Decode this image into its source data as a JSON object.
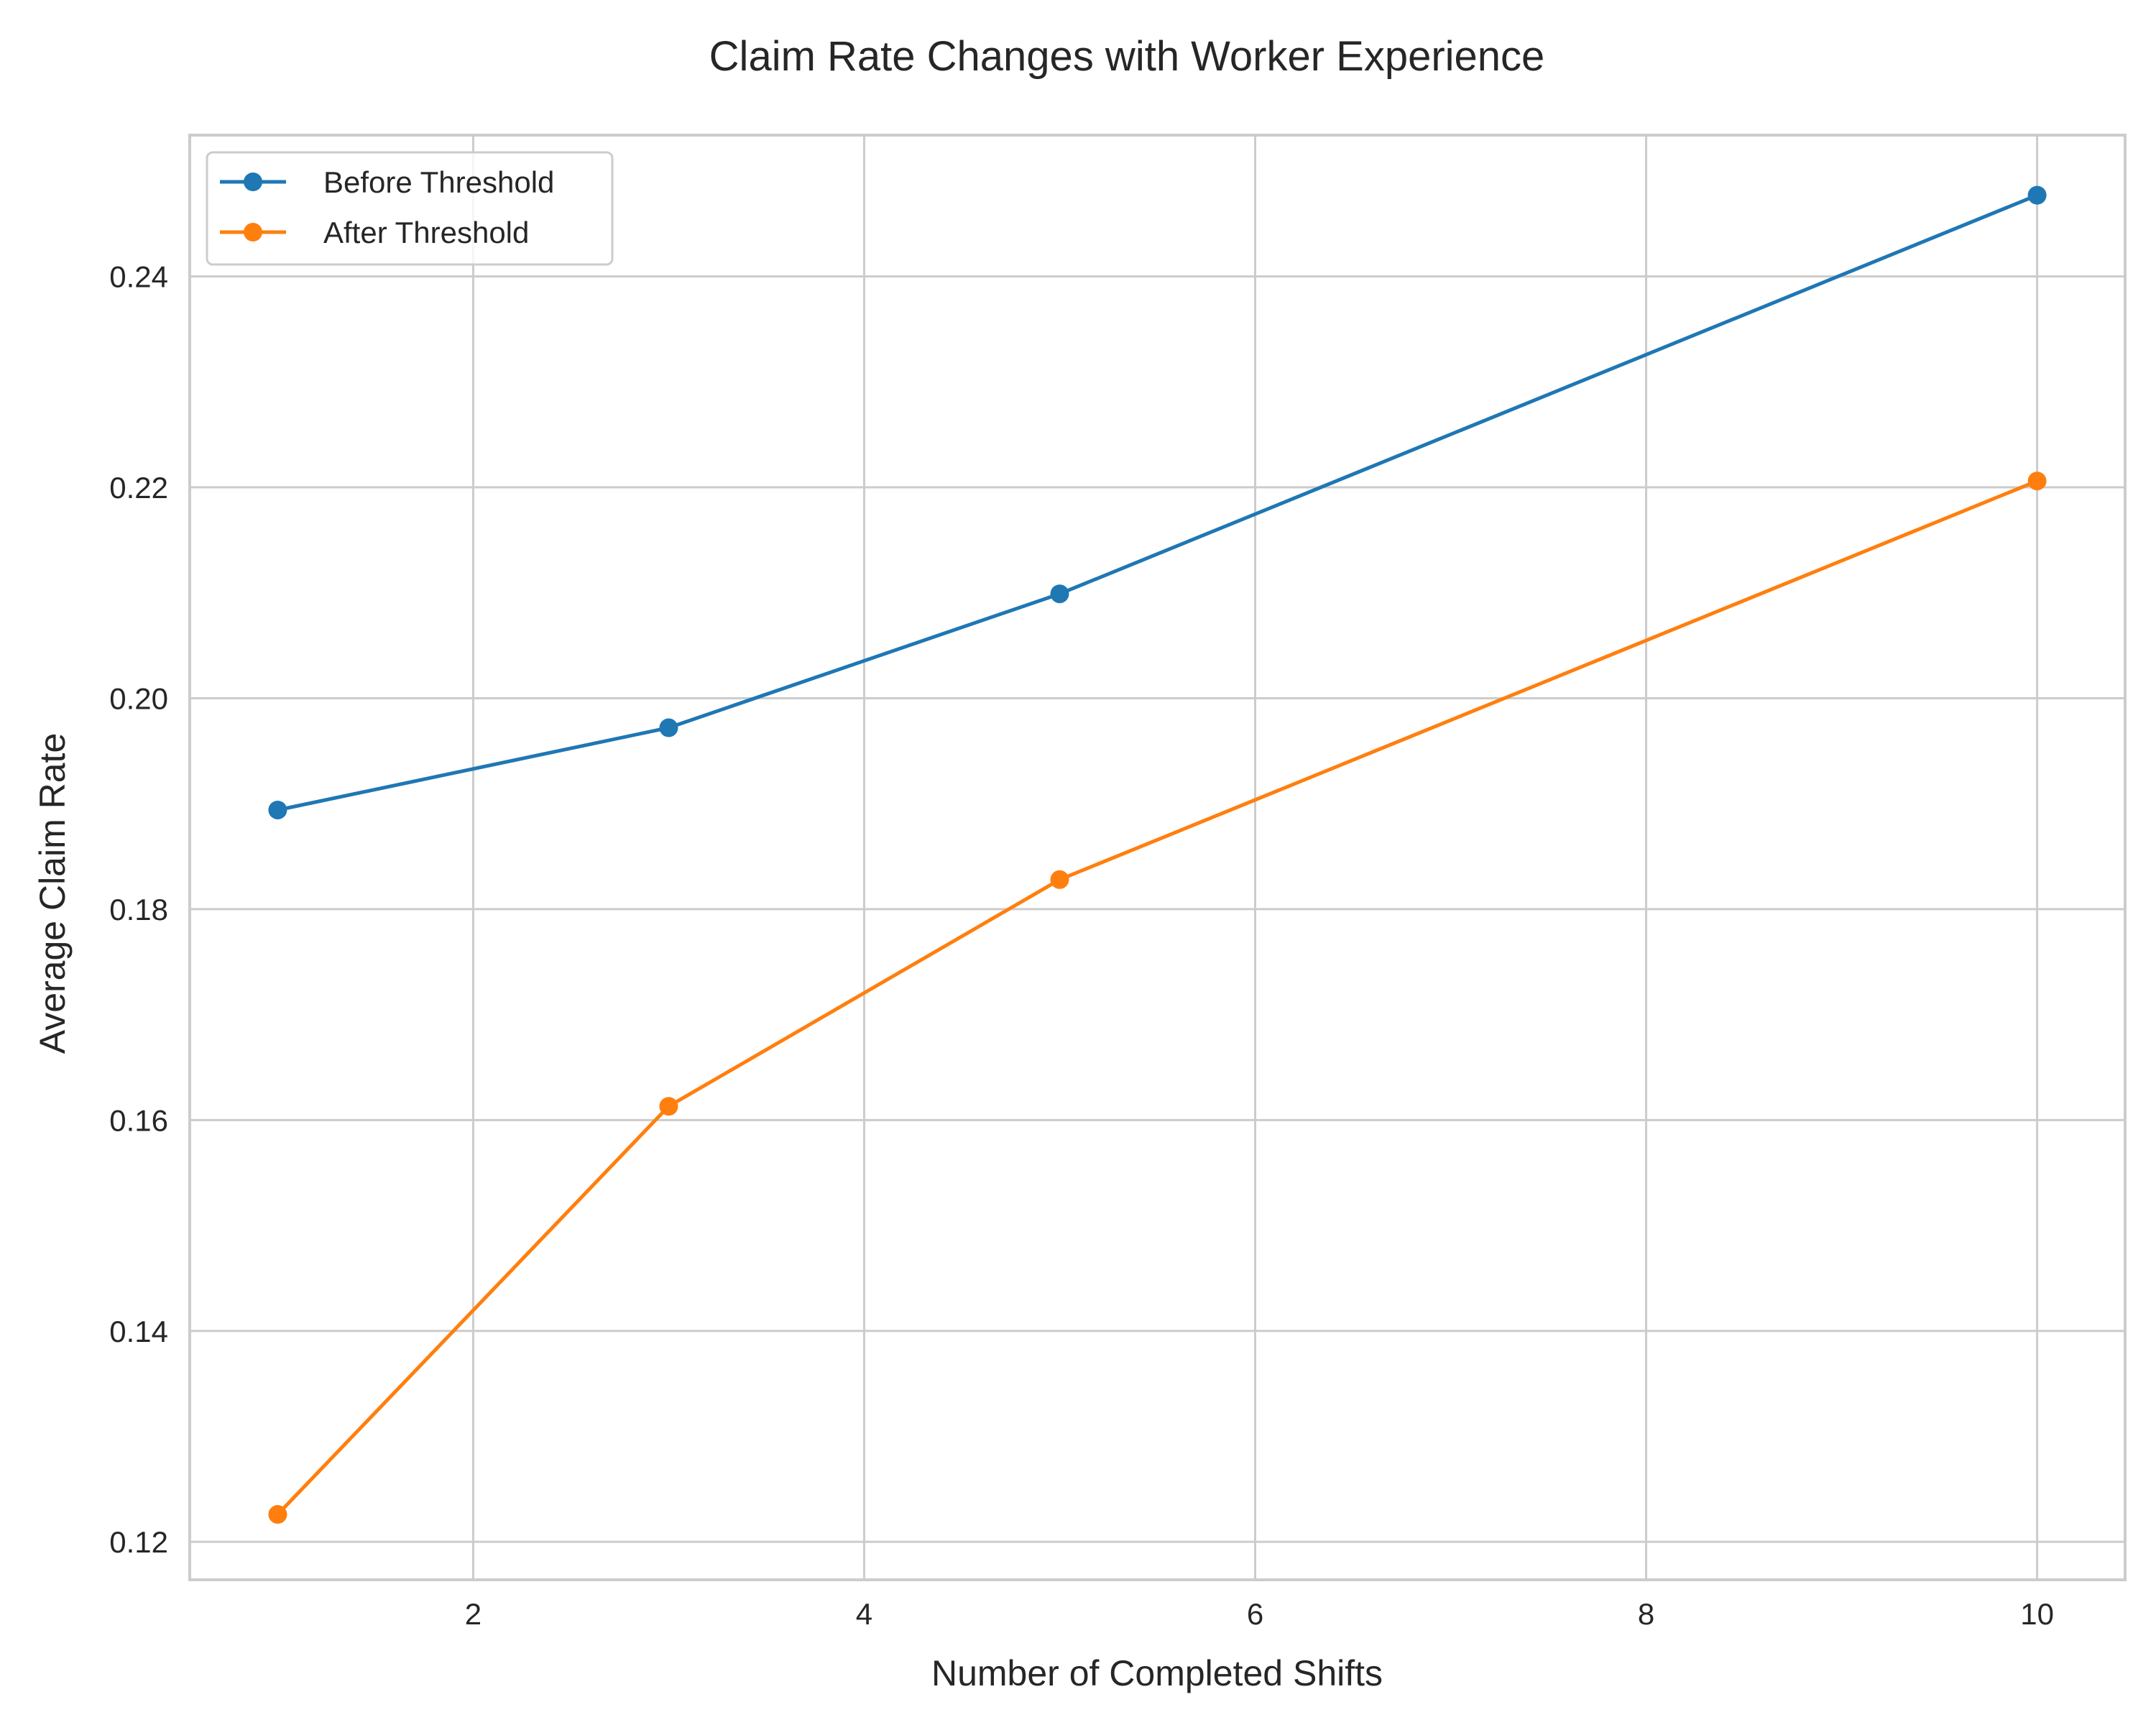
{
  "chart_data": {
    "type": "line",
    "title": "Claim Rate Changes with Worker Experience",
    "xlabel": "Number of Completed Shifts",
    "ylabel": "Average Claim Rate",
    "xlim": [
      0.55,
      10.45
    ],
    "ylim": [
      0.1164,
      0.2534
    ],
    "x_ticks": [
      2,
      4,
      6,
      8,
      10
    ],
    "x_tick_labels": [
      "2",
      "4",
      "6",
      "8",
      "10"
    ],
    "y_ticks": [
      0.12,
      0.14,
      0.16,
      0.18,
      0.2,
      0.22,
      0.24
    ],
    "y_tick_labels": [
      "0.12",
      "0.14",
      "0.16",
      "0.18",
      "0.20",
      "0.22",
      "0.24"
    ],
    "grid": true,
    "legend_position": "top-left",
    "x": [
      1,
      3,
      5,
      10
    ],
    "series": [
      {
        "name": "Before Threshold",
        "color": "#1f77b4",
        "marker": "circle",
        "values": [
          0.1894,
          0.1972,
          0.2099,
          0.2477
        ]
      },
      {
        "name": "After Threshold",
        "color": "#ff7f0e",
        "marker": "circle",
        "values": [
          0.1226,
          0.1613,
          0.1828,
          0.2206
        ]
      }
    ]
  }
}
